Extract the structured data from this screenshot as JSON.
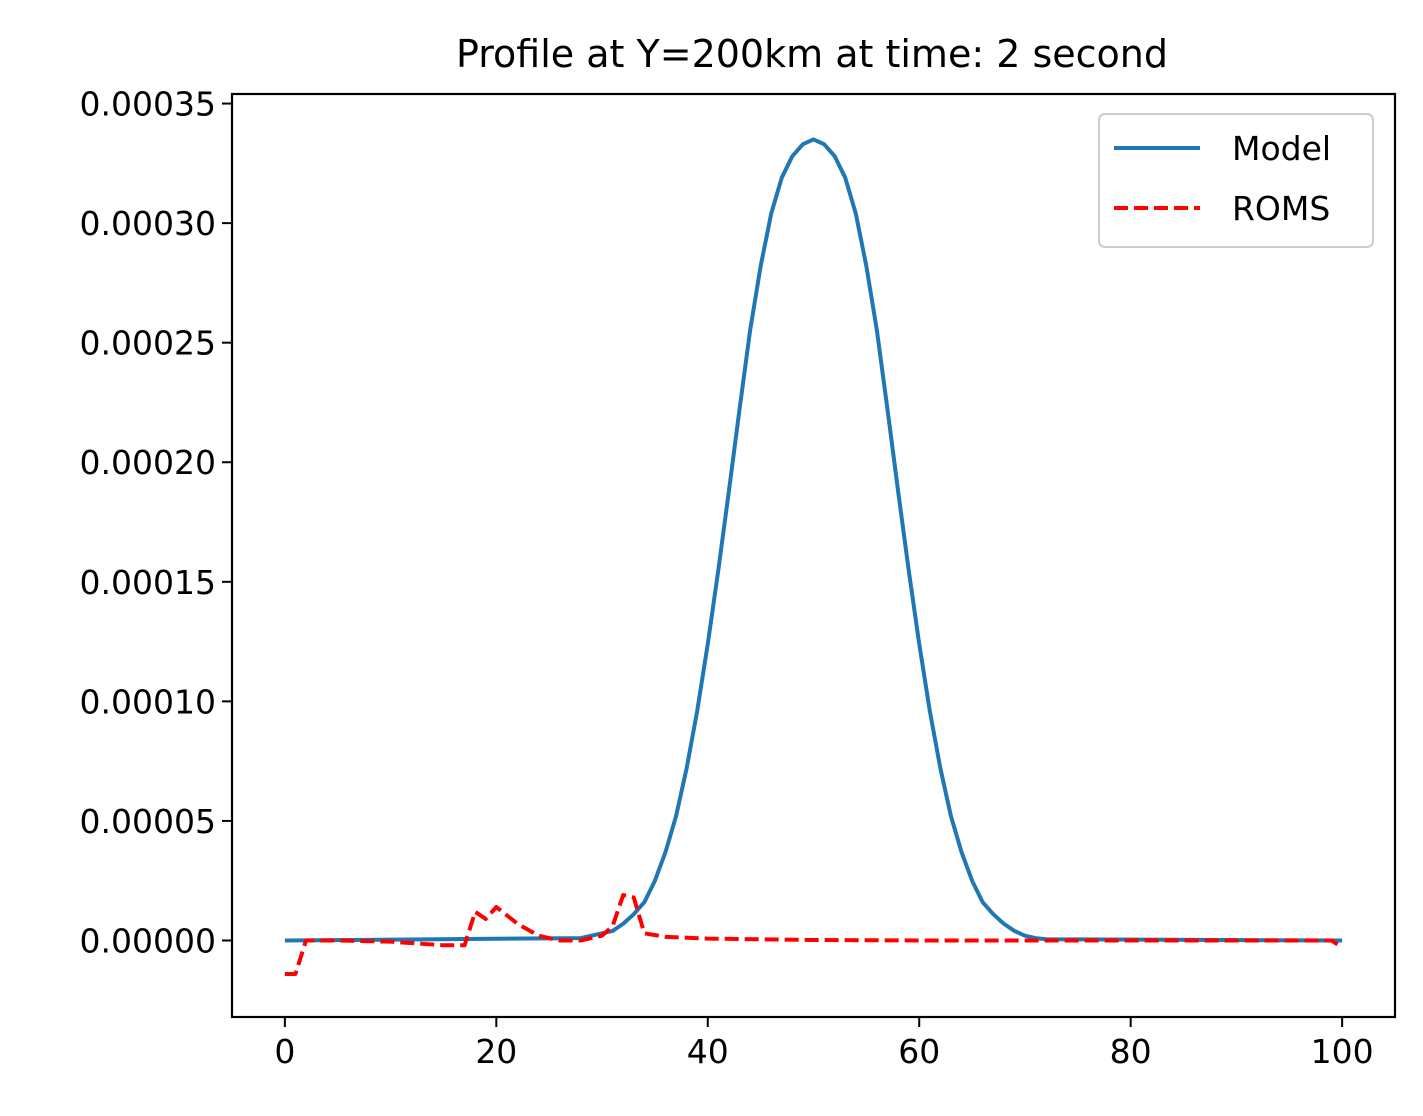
{
  "chart_data": {
    "type": "line",
    "title": "Profile at Y=200km at time: 2 second",
    "xlabel": "",
    "ylabel": "",
    "xlim": [
      -5,
      105
    ],
    "ylim": [
      -3.2e-05,
      0.000354
    ],
    "xticks": [
      0,
      20,
      40,
      60,
      80,
      100
    ],
    "xtick_labels": [
      "0",
      "20",
      "40",
      "60",
      "80",
      "100"
    ],
    "yticks": [
      0,
      5e-05,
      0.0001,
      0.00015,
      0.0002,
      0.00025,
      0.0003,
      0.00035
    ],
    "ytick_labels": [
      "0.00000",
      "0.00005",
      "0.00010",
      "0.00015",
      "0.00020",
      "0.00025",
      "0.00030",
      "0.00035"
    ],
    "grid": false,
    "legend": {
      "position": "top-right",
      "entries": [
        "Model",
        "ROMS"
      ]
    },
    "series": [
      {
        "name": "Model",
        "color": "#1f77b4",
        "style": "solid",
        "x": [
          0,
          28,
          29,
          30,
          31,
          32,
          33,
          34,
          35,
          36,
          37,
          38,
          39,
          40,
          41,
          42,
          43,
          44,
          45,
          46,
          47,
          48,
          49,
          50,
          51,
          52,
          53,
          54,
          55,
          56,
          57,
          58,
          59,
          60,
          61,
          62,
          63,
          64,
          65,
          66,
          67,
          68,
          69,
          70,
          71,
          72,
          100
        ],
        "values": [
          0,
          1e-06,
          2e-06,
          3e-06,
          4e-06,
          7e-06,
          1.1e-05,
          1.6e-05,
          2.5e-05,
          3.7e-05,
          5.2e-05,
          7.2e-05,
          9.6e-05,
          0.000124,
          0.000155,
          0.000188,
          0.000222,
          0.000255,
          0.000282,
          0.000304,
          0.000319,
          0.000328,
          0.000333,
          0.000335,
          0.000333,
          0.000328,
          0.000319,
          0.000304,
          0.000282,
          0.000255,
          0.000222,
          0.000188,
          0.000155,
          0.000124,
          9.6e-05,
          7.2e-05,
          5.2e-05,
          3.7e-05,
          2.5e-05,
          1.6e-05,
          1.1e-05,
          7e-06,
          4e-06,
          2e-06,
          1e-06,
          5e-07,
          0
        ]
      },
      {
        "name": "ROMS",
        "color": "#ff0000",
        "style": "dashed",
        "x": [
          0,
          1,
          2,
          5,
          10,
          15,
          17,
          18,
          19,
          20,
          22,
          24,
          26,
          28,
          30,
          31,
          32,
          33,
          34,
          36,
          40,
          50,
          60,
          80,
          99,
          100
        ],
        "values": [
          -1.4e-05,
          -1.4e-05,
          0,
          0,
          -5e-07,
          -2e-06,
          -2e-06,
          1.2e-05,
          9e-06,
          1.4e-05,
          7e-06,
          2e-06,
          0,
          0,
          2e-06,
          6e-06,
          1.9e-05,
          1.8e-05,
          3e-06,
          1.5e-06,
          8e-07,
          2e-07,
          0,
          0,
          0,
          -3e-06
        ]
      }
    ]
  }
}
